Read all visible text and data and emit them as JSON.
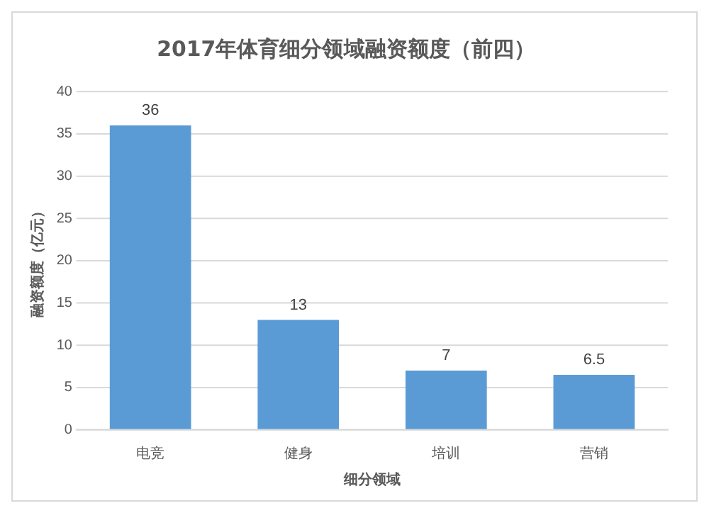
{
  "chart_data": {
    "type": "bar",
    "title": "2017年体育细分领域融资额度（前四）",
    "xlabel": "细分领域",
    "ylabel": "融资额度（亿元）",
    "categories": [
      "电竞",
      "健身",
      "培训",
      "营销"
    ],
    "values": [
      36,
      13,
      7,
      6.5
    ],
    "color": "#5b9bd5",
    "ylim": [
      0,
      40
    ],
    "yticks": [
      0,
      5,
      10,
      15,
      20,
      25,
      30,
      35,
      40
    ],
    "grid": "y",
    "data_labels": true
  }
}
